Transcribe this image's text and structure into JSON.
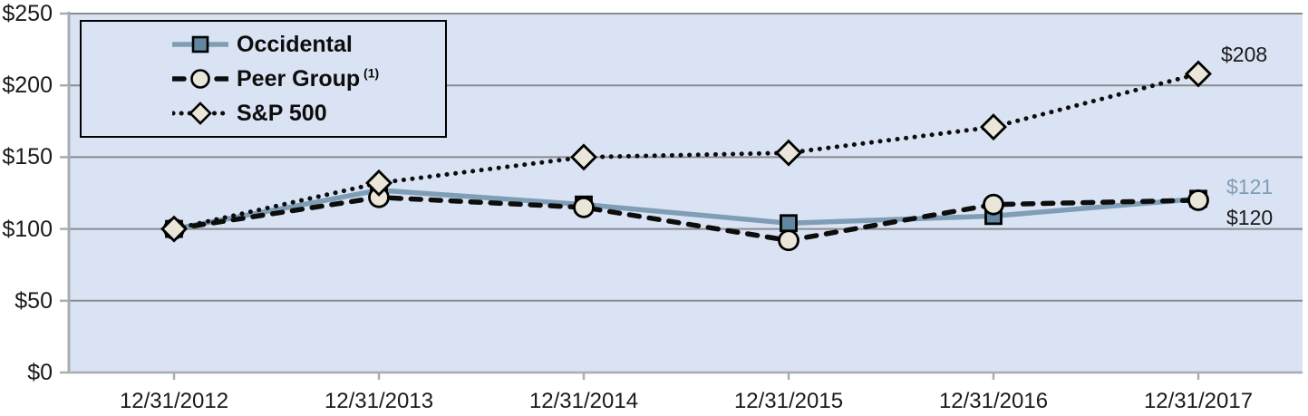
{
  "chart_data": {
    "type": "line",
    "categories": [
      "12/31/2012",
      "12/31/2013",
      "12/31/2014",
      "12/31/2015",
      "12/31/2016",
      "12/31/2017"
    ],
    "series": [
      {
        "name": "Occidental",
        "name_superscript": "",
        "values": [
          100,
          127,
          117,
          104,
          109,
          121
        ],
        "line_color": "#7f9eb6",
        "line_style": "solid",
        "marker": "square",
        "marker_fill": "#6287a1",
        "end_label": "$121",
        "end_label_color": "#7f9eb6"
      },
      {
        "name": "Peer Group",
        "name_superscript": "(1)",
        "values": [
          100,
          122,
          115,
          92,
          117,
          120
        ],
        "line_color": "#0d0d0d",
        "line_style": "dashed",
        "marker": "circle",
        "marker_fill": "#eae6da",
        "end_label": "$120",
        "end_label_color": "#1a1a1a"
      },
      {
        "name": "S&P 500",
        "name_superscript": "",
        "values": [
          100,
          132,
          150,
          153,
          171,
          208
        ],
        "line_color": "#0d0d0d",
        "line_style": "dotted",
        "marker": "diamond",
        "marker_fill": "#eae6da",
        "end_label": "$208",
        "end_label_color": "#1a1a1a"
      }
    ],
    "y_axis": {
      "min": 0,
      "max": 250,
      "step": 50,
      "tick_labels": [
        "$0",
        "$50",
        "$100",
        "$150",
        "$200",
        "$250"
      ]
    },
    "x_axis": {
      "tick_labels": [
        "12/31/2012",
        "12/31/2013",
        "12/31/2014",
        "12/31/2015",
        "12/31/2016",
        "12/31/2017"
      ]
    },
    "grid": true,
    "legend_position": "top-left",
    "plot_bg": "#dae3f3",
    "grid_color": "#888c90",
    "axis_color": "#a8adb2",
    "marker_stroke": "#000000"
  }
}
